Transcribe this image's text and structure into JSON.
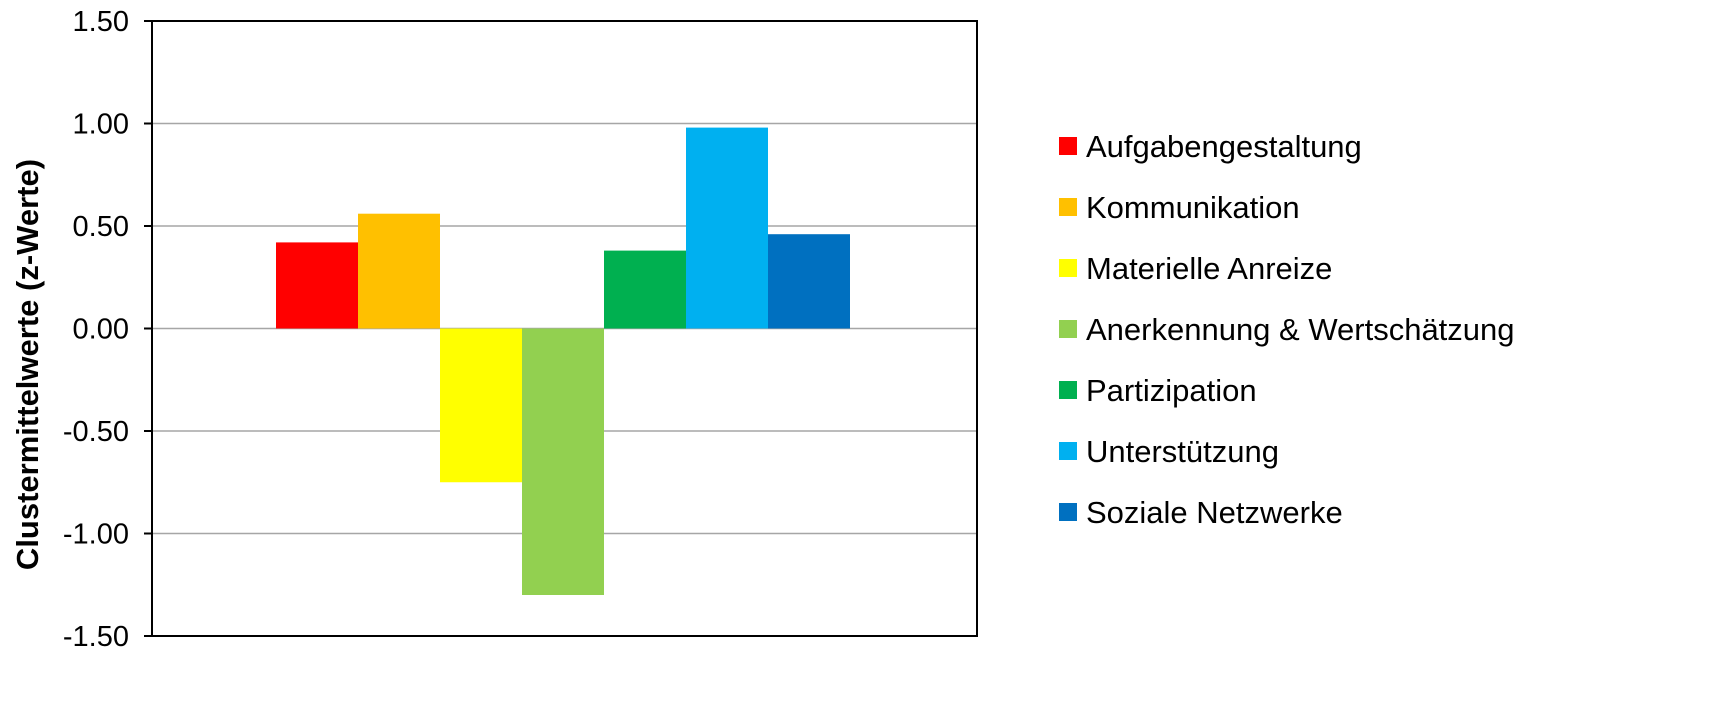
{
  "chart_data": {
    "type": "bar",
    "title": "",
    "xlabel": "",
    "ylabel": "Clustermittelwerte (z-Werte)",
    "ylim": [
      -1.5,
      1.5
    ],
    "yticks": [
      1.5,
      1.0,
      0.5,
      0.0,
      -0.5,
      -1.0,
      -1.5
    ],
    "ytick_labels": [
      "1.50",
      "1.00",
      "0.50",
      "0.00",
      "-0.50",
      "-1.00",
      "-1.50"
    ],
    "grid": true,
    "legend_position": "right",
    "series": [
      {
        "name": "Aufgabengestaltung",
        "value": 0.42,
        "color": "#FF0000"
      },
      {
        "name": "Kommunikation",
        "value": 0.56,
        "color": "#FFC000"
      },
      {
        "name": "Materielle Anreize",
        "value": -0.75,
        "color": "#FFFF00"
      },
      {
        "name": "Anerkennung & Wertschätzung",
        "value": -1.3,
        "color": "#92D050"
      },
      {
        "name": "Partizipation",
        "value": 0.38,
        "color": "#00B050"
      },
      {
        "name": "Unterstützung",
        "value": 0.98,
        "color": "#00B0F0"
      },
      {
        "name": "Soziale Netzwerke",
        "value": 0.46,
        "color": "#0070C0"
      }
    ]
  }
}
